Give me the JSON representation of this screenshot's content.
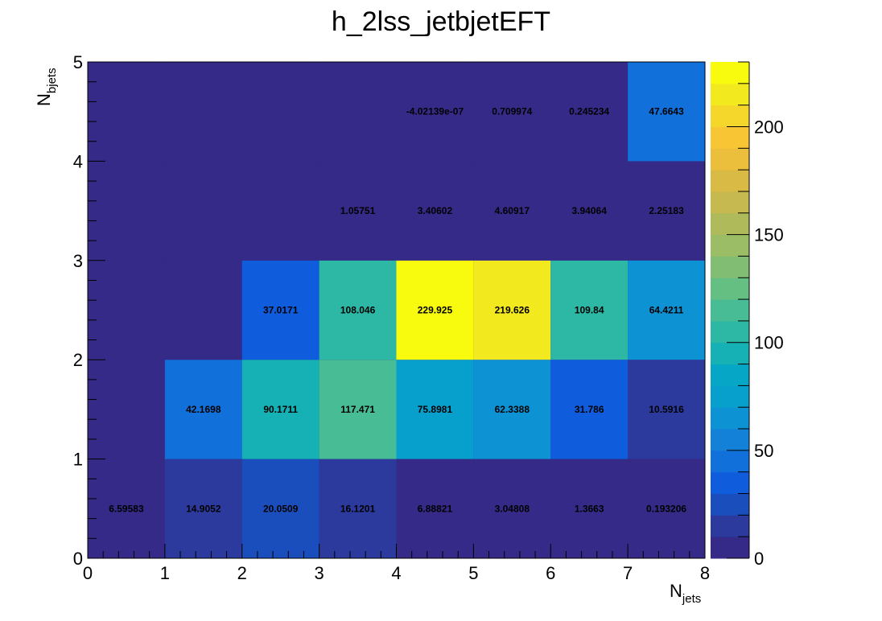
{
  "chart_data": {
    "type": "heatmap",
    "title": "h_2lss_jetbjetEFT",
    "xlabel": {
      "main": "N",
      "sub": "jets"
    },
    "ylabel": {
      "main": "N",
      "sub": "bjets"
    },
    "x_edges": [
      0,
      1,
      2,
      3,
      4,
      5,
      6,
      7,
      8
    ],
    "y_edges": [
      0,
      1,
      2,
      3,
      4,
      5
    ],
    "x_ticks": [
      "0",
      "1",
      "2",
      "3",
      "4",
      "5",
      "6",
      "7",
      "8"
    ],
    "y_ticks": [
      "0",
      "1",
      "2",
      "3",
      "4",
      "5"
    ],
    "z_range": [
      0,
      230
    ],
    "colorbar_ticks": [
      "0",
      "50",
      "100",
      "150",
      "200"
    ],
    "colorbar_tick_values": [
      0,
      50,
      100,
      150,
      200
    ],
    "colormap": [
      "#352a87",
      "#2c3a9e",
      "#1b4ebd",
      "#0f5cdd",
      "#1170da",
      "#1281d7",
      "#0d92d4",
      "#079fcb",
      "#06a7c6",
      "#15b1b4",
      "#2cb8a4",
      "#48bc95",
      "#65bf83",
      "#81be74",
      "#9abd66",
      "#afbb5b",
      "#c5b950",
      "#d8ba45",
      "#ebbe3b",
      "#f8c635",
      "#f5d72b",
      "#f2e91f",
      "#f9fb0e"
    ],
    "cells": [
      {
        "x": 0,
        "y": 0,
        "value": 6.59583,
        "label": "6.59583"
      },
      {
        "x": 1,
        "y": 0,
        "value": 14.9052,
        "label": "14.9052"
      },
      {
        "x": 2,
        "y": 0,
        "value": 20.0509,
        "label": "20.0509"
      },
      {
        "x": 3,
        "y": 0,
        "value": 16.1201,
        "label": "16.1201"
      },
      {
        "x": 4,
        "y": 0,
        "value": 6.88821,
        "label": "6.88821"
      },
      {
        "x": 5,
        "y": 0,
        "value": 3.04808,
        "label": "3.04808"
      },
      {
        "x": 6,
        "y": 0,
        "value": 1.3663,
        "label": "1.3663"
      },
      {
        "x": 7,
        "y": 0,
        "value": 0.193206,
        "label": "0.193206"
      },
      {
        "x": 1,
        "y": 1,
        "value": 42.1698,
        "label": "42.1698"
      },
      {
        "x": 2,
        "y": 1,
        "value": 90.1711,
        "label": "90.1711"
      },
      {
        "x": 3,
        "y": 1,
        "value": 117.471,
        "label": "117.471"
      },
      {
        "x": 4,
        "y": 1,
        "value": 75.8981,
        "label": "75.8981"
      },
      {
        "x": 5,
        "y": 1,
        "value": 62.3388,
        "label": "62.3388"
      },
      {
        "x": 6,
        "y": 1,
        "value": 31.786,
        "label": "31.786"
      },
      {
        "x": 7,
        "y": 1,
        "value": 10.5916,
        "label": "10.5916"
      },
      {
        "x": 2,
        "y": 2,
        "value": 37.0171,
        "label": "37.0171"
      },
      {
        "x": 3,
        "y": 2,
        "value": 108.046,
        "label": "108.046"
      },
      {
        "x": 4,
        "y": 2,
        "value": 229.925,
        "label": "229.925"
      },
      {
        "x": 5,
        "y": 2,
        "value": 219.626,
        "label": "219.626"
      },
      {
        "x": 6,
        "y": 2,
        "value": 109.84,
        "label": "109.84"
      },
      {
        "x": 7,
        "y": 2,
        "value": 64.4211,
        "label": "64.4211"
      },
      {
        "x": 3,
        "y": 3,
        "value": 1.05751,
        "label": "1.05751"
      },
      {
        "x": 4,
        "y": 3,
        "value": 3.40602,
        "label": "3.40602"
      },
      {
        "x": 5,
        "y": 3,
        "value": 4.60917,
        "label": "4.60917"
      },
      {
        "x": 6,
        "y": 3,
        "value": 3.94064,
        "label": "3.94064"
      },
      {
        "x": 7,
        "y": 3,
        "value": 2.25183,
        "label": "2.25183"
      },
      {
        "x": 4,
        "y": 4,
        "value": -4.02139e-07,
        "label": "-4.02139e-07"
      },
      {
        "x": 5,
        "y": 4,
        "value": 0.709974,
        "label": "0.709974"
      },
      {
        "x": 6,
        "y": 4,
        "value": 0.245234,
        "label": "0.245234"
      },
      {
        "x": 7,
        "y": 4,
        "value": 47.6643,
        "label": "47.6643"
      }
    ]
  }
}
